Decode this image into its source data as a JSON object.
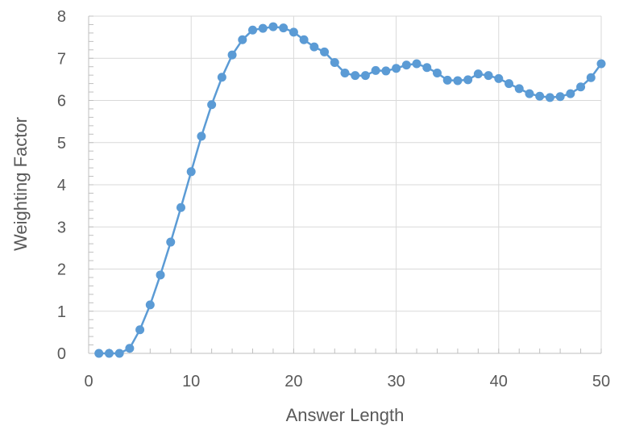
{
  "chart_data": {
    "type": "line",
    "title": "",
    "xlabel": "Answer Length",
    "ylabel": "Weighting Factor",
    "xlim": [
      0,
      50
    ],
    "ylim": [
      0,
      8
    ],
    "x_ticks": [
      0,
      10,
      20,
      30,
      40,
      50
    ],
    "y_ticks": [
      0,
      1,
      2,
      3,
      4,
      5,
      6,
      7,
      8
    ],
    "grid": true,
    "legend": "none",
    "series": [
      {
        "color": "#5B9BD5",
        "marker": "circle",
        "x": [
          1,
          2,
          3,
          4,
          5,
          6,
          7,
          8,
          9,
          10,
          11,
          12,
          13,
          14,
          15,
          16,
          17,
          18,
          19,
          20,
          21,
          22,
          23,
          24,
          25,
          26,
          27,
          28,
          29,
          30,
          31,
          32,
          33,
          34,
          35,
          36,
          37,
          38,
          39,
          40,
          41,
          42,
          43,
          44,
          45,
          46,
          47,
          48,
          49,
          50
        ],
        "y": [
          0.0,
          0.0,
          0.0,
          0.12,
          0.56,
          1.15,
          1.86,
          2.64,
          3.46,
          4.31,
          5.15,
          5.9,
          6.55,
          7.08,
          7.44,
          7.67,
          7.71,
          7.75,
          7.72,
          7.62,
          7.44,
          7.27,
          7.15,
          6.9,
          6.65,
          6.59,
          6.59,
          6.71,
          6.7,
          6.76,
          6.84,
          6.87,
          6.78,
          6.65,
          6.48,
          6.47,
          6.49,
          6.63,
          6.59,
          6.52,
          6.4,
          6.28,
          6.16,
          6.1,
          6.07,
          6.09,
          6.16,
          6.32,
          6.54,
          6.87
        ]
      }
    ]
  }
}
